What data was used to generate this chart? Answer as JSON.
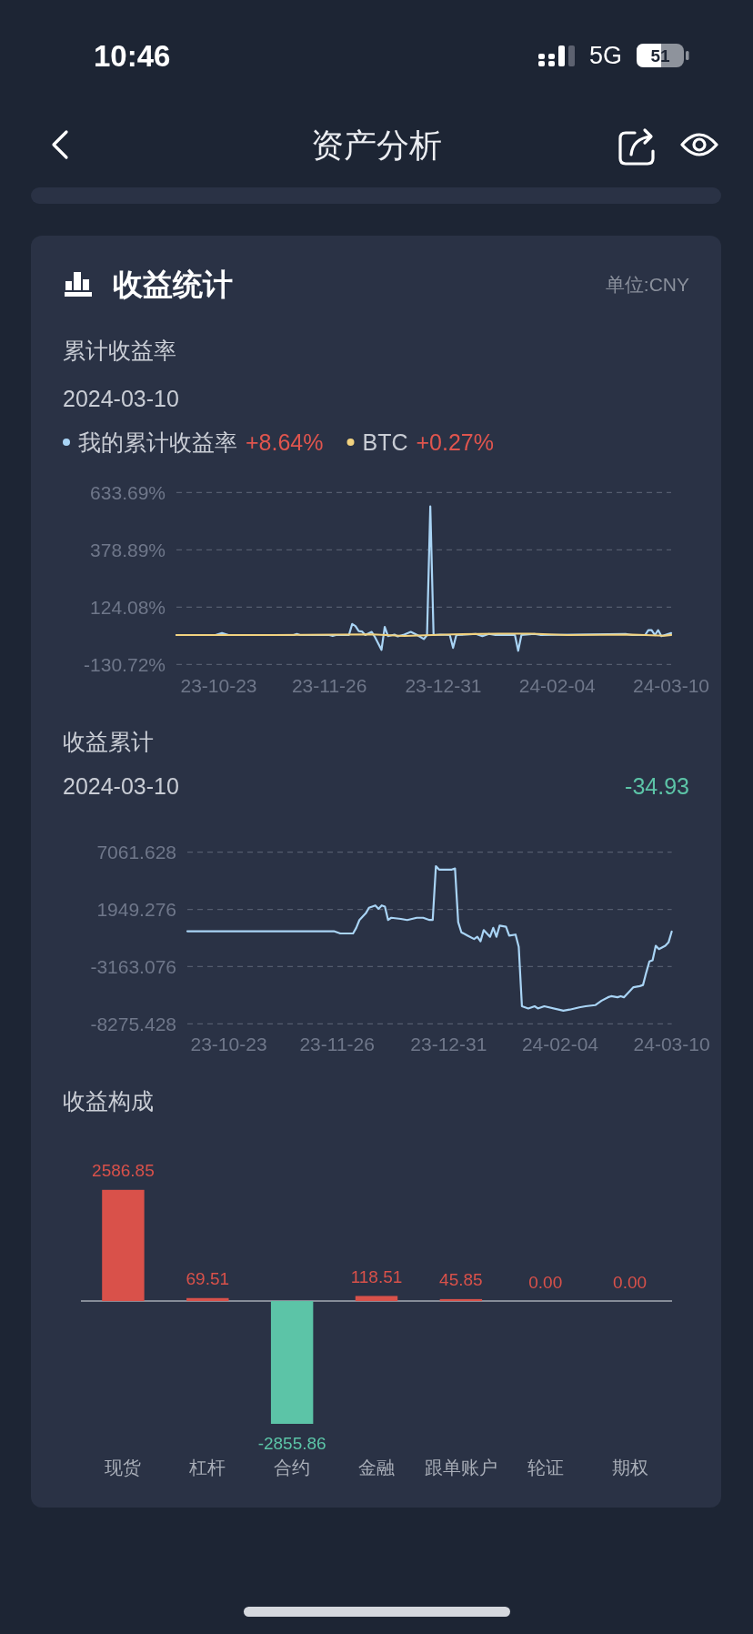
{
  "chart_data": [
    {
      "type": "other",
      "title": "资产分析",
      "subtitle": "收益统计",
      "annotations": [
        "10:46",
        "5G",
        "51",
        "单位:CNY"
      ]
    },
    {
      "type": "line",
      "title": "累计收益率",
      "subtitle": "2024-03-10",
      "legend": "top left",
      "grid": "y",
      "annotations": [
        "+8.64%",
        "+0.27%"
      ],
      "xlim": [
        "2023-10-10",
        "2024-03-10"
      ],
      "xticks": [
        {
          "value": "2023-10-23",
          "label": "23-10-23"
        },
        {
          "value": "2023-11-26",
          "label": "23-11-26"
        },
        {
          "value": "2023-12-31",
          "label": "23-12-31"
        },
        {
          "value": "2024-02-04",
          "label": "24-02-04"
        },
        {
          "value": "2024-03-10",
          "label": "24-03-10"
        }
      ],
      "ylim": [
        -130.72,
        633.69
      ],
      "yticks": [
        {
          "value": 633.69,
          "label": "633.69%"
        },
        {
          "value": 378.89,
          "label": "378.89%"
        },
        {
          "value": 124.08,
          "label": "124.08%"
        },
        {
          "value": -130.72,
          "label": "-130.72%"
        }
      ],
      "series": [
        {
          "name": "我的累计收益率",
          "color": "#a9d4f5",
          "x": [
            "2023-10-10",
            "2023-10-22",
            "2023-10-24",
            "2023-10-26",
            "2023-11-15",
            "2023-11-16",
            "2023-11-17",
            "2023-11-26",
            "2023-11-27",
            "2023-11-28",
            "2023-12-02",
            "2023-12-03",
            "2023-12-04",
            "2023-12-05",
            "2023-12-06",
            "2023-12-07",
            "2023-12-09",
            "2023-12-10",
            "2023-12-12",
            "2023-12-13",
            "2023-12-14",
            "2023-12-16",
            "2023-12-17",
            "2023-12-19",
            "2023-12-21",
            "2023-12-23",
            "2023-12-25",
            "2023-12-26",
            "2023-12-27",
            "2023-12-28",
            "2023-12-30",
            "2024-01-02",
            "2024-01-03",
            "2024-01-04",
            "2024-01-10",
            "2024-01-12",
            "2024-01-14",
            "2024-01-16",
            "2024-01-22",
            "2024-01-23",
            "2024-01-24",
            "2024-01-28",
            "2024-01-30",
            "2024-02-25",
            "2024-02-27",
            "2024-03-02",
            "2024-03-03",
            "2024-03-04",
            "2024-03-05",
            "2024-03-06",
            "2024-03-07",
            "2024-03-10"
          ],
          "values": [
            0,
            0,
            9,
            0,
            0,
            5,
            0,
            0,
            -4,
            0,
            0,
            49,
            40,
            18,
            16,
            0,
            14,
            -9,
            -66,
            36,
            -5,
            2,
            -6,
            2,
            14,
            0,
            -18,
            0,
            572,
            0,
            2,
            0,
            -57,
            0,
            5,
            -5,
            5,
            0,
            0,
            -70,
            0,
            5,
            0,
            5,
            0,
            0,
            22,
            22,
            0,
            22,
            -5,
            8.64
          ]
        },
        {
          "name": "BTC",
          "color": "#f2d27f",
          "x": [
            "2023-10-10",
            "2023-11-09",
            "2023-12-09",
            "2023-12-19",
            "2024-01-03",
            "2024-01-17",
            "2024-01-27",
            "2024-02-07",
            "2024-02-27",
            "2024-03-08",
            "2024-03-10"
          ],
          "values": [
            0,
            0,
            3,
            -4,
            3,
            6,
            6,
            0,
            2,
            -3,
            0.27
          ]
        }
      ]
    },
    {
      "type": "line",
      "title": "收益累计",
      "subtitle": "2024-03-10",
      "grid": "y",
      "annotations": [
        "-34.93"
      ],
      "xlim": [
        "2023-10-10",
        "2024-03-10"
      ],
      "xticks": [
        {
          "value": "2023-10-23",
          "label": "23-10-23"
        },
        {
          "value": "2023-11-26",
          "label": "23-11-26"
        },
        {
          "value": "2023-12-31",
          "label": "23-12-31"
        },
        {
          "value": "2024-02-04",
          "label": "24-02-04"
        },
        {
          "value": "2024-03-10",
          "label": "24-03-10"
        }
      ],
      "ylim": [
        -8275.428,
        7061.628
      ],
      "yticks": [
        7061.628,
        1949.276,
        -3163.076,
        -8275.428
      ],
      "series": [
        {
          "color": "#a9d4f5",
          "x": [
            "2023-10-10",
            "2023-11-25",
            "2023-11-27",
            "2023-12-01",
            "2023-12-02",
            "2023-12-03",
            "2023-12-05",
            "2023-12-06",
            "2023-12-08",
            "2023-12-09",
            "2023-12-10",
            "2023-12-11",
            "2023-12-12",
            "2023-12-13",
            "2023-12-16",
            "2023-12-18",
            "2023-12-21",
            "2023-12-23",
            "2023-12-25",
            "2023-12-26",
            "2023-12-27",
            "2023-12-28",
            "2023-12-30",
            "2024-01-01",
            "2024-01-02",
            "2024-01-03",
            "2024-01-04",
            "2024-01-06",
            "2024-01-08",
            "2024-01-09",
            "2024-01-10",
            "2024-01-11",
            "2024-01-13",
            "2024-01-14",
            "2024-01-15",
            "2024-01-16",
            "2024-01-18",
            "2024-01-19",
            "2024-01-21",
            "2024-01-22",
            "2024-01-23",
            "2024-01-25",
            "2024-01-27",
            "2024-01-28",
            "2024-01-30",
            "2024-02-05",
            "2024-02-07",
            "2024-02-10",
            "2024-02-12",
            "2024-02-15",
            "2024-02-17",
            "2024-02-19",
            "2024-02-20",
            "2024-02-22",
            "2024-02-23",
            "2024-02-24",
            "2024-02-26",
            "2024-02-27",
            "2024-02-29",
            "2024-03-01",
            "2024-03-02",
            "2024-03-03",
            "2024-03-04",
            "2024-03-05",
            "2024-03-06",
            "2024-03-08",
            "2024-03-09",
            "2024-03-10"
          ],
          "values": [
            0,
            0,
            -200,
            -200,
            300,
            1000,
            1600,
            2100,
            2300,
            2000,
            2300,
            2200,
            1000,
            1200,
            1100,
            1000,
            1200,
            1200,
            1000,
            1000,
            5800,
            5500,
            5500,
            5500,
            5600,
            800,
            -100,
            -400,
            -700,
            -500,
            -900,
            100,
            -500,
            300,
            -500,
            500,
            400,
            -400,
            -300,
            -1400,
            -6700,
            -6900,
            -6700,
            -6900,
            -6700,
            -7100,
            -7000,
            -6800,
            -6700,
            -6600,
            -6200,
            -5900,
            -5800,
            -5900,
            -5800,
            -5900,
            -5300,
            -5000,
            -4900,
            -4800,
            -3700,
            -2700,
            -2600,
            -1300,
            -1600,
            -1300,
            -1000,
            -34.93
          ]
        }
      ]
    },
    {
      "type": "bar",
      "title": "收益构成",
      "categories": [
        "现货",
        "杠杆",
        "合约",
        "金融",
        "跟单账户",
        "轮证",
        "期权"
      ],
      "values": [
        2586.85,
        69.51,
        -2855.86,
        118.51,
        45.85,
        0,
        0
      ],
      "colors": [
        "#d9514a",
        "#d9514a",
        "#5cc4a7",
        "#d9514a",
        "#d9514a",
        "#d9514a",
        "#d9514a"
      ],
      "value_labels": [
        "2586.85",
        "69.51",
        "-2855.86",
        "118.51",
        "45.85",
        "0.00",
        "0.00"
      ]
    }
  ]
}
